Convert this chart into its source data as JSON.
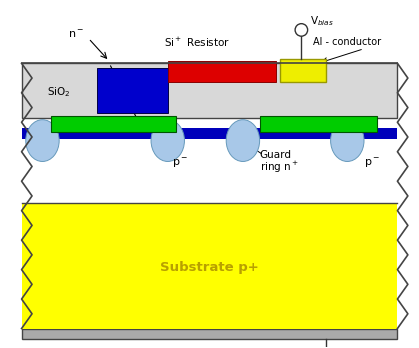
{
  "bg_color": "#ffffff",
  "substrate_color": "#ffff00",
  "substrate_label": "Substrate p+",
  "substrate_label_color": "#b8a000",
  "sio2_color": "#d8d8d8",
  "sio2_label": "SiO₂",
  "n_implant_color": "#0000cc",
  "green_layer_color": "#00cc00",
  "resistor_color": "#dd0000",
  "al_color": "#eeee00",
  "al_border": "#999900",
  "guard_ring_color": "#a8c8e8",
  "guard_ring_edge": "#6699bb",
  "bottom_bar_color": "#aaaaaa",
  "wire_color": "#333333",
  "gnd_color": "#111111",
  "border_color": "#444444",
  "p_silicon_color": "#ffffff",
  "blue_top_color": "#0000bb"
}
